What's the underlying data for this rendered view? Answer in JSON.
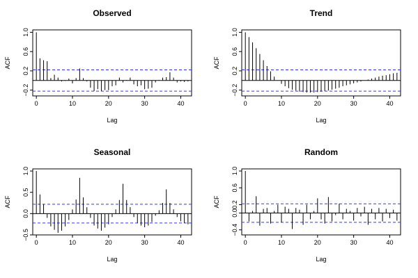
{
  "colors": {
    "ci": "#3333ff",
    "spike": "#000000",
    "frame": "#000000"
  },
  "chart_data": [
    {
      "type": "bar",
      "title": "Observed",
      "xlabel": "Lag",
      "ylabel": "ACF",
      "xlim": [
        -1,
        43
      ],
      "ylim": [
        -0.32,
        1.05
      ],
      "xticks": [
        0,
        10,
        20,
        30,
        40
      ],
      "yticks": [
        -0.2,
        0.2,
        0.6,
        1.0
      ],
      "ytick_labels": [
        "−0.2",
        "0.2",
        "0.6",
        "1.0"
      ],
      "ci": 0.22,
      "lags": [
        0,
        1,
        2,
        3,
        4,
        5,
        6,
        7,
        8,
        9,
        10,
        11,
        12,
        13,
        14,
        15,
        16,
        17,
        18,
        19,
        20,
        21,
        22,
        23,
        24,
        25,
        26,
        27,
        28,
        29,
        30,
        31,
        32,
        33,
        34,
        35,
        36,
        37,
        38,
        39,
        40,
        41,
        42
      ],
      "values": [
        1.0,
        0.46,
        0.42,
        0.4,
        0.05,
        0.12,
        0.06,
        -0.02,
        -0.01,
        0.04,
        -0.06,
        0.05,
        0.25,
        0.05,
        -0.02,
        -0.15,
        -0.22,
        -0.18,
        -0.22,
        -0.2,
        -0.2,
        -0.12,
        -0.1,
        0.06,
        -0.04,
        0.01,
        0.06,
        -0.08,
        -0.12,
        -0.1,
        -0.18,
        -0.17,
        -0.15,
        -0.04,
        0.01,
        0.06,
        0.07,
        0.17,
        0.06,
        -0.04,
        -0.02,
        -0.03,
        -0.02
      ]
    },
    {
      "type": "bar",
      "title": "Trend",
      "xlabel": "Lag",
      "ylabel": "ACF",
      "xlim": [
        -1,
        43
      ],
      "ylim": [
        -0.32,
        1.05
      ],
      "xticks": [
        0,
        10,
        20,
        30,
        40
      ],
      "yticks": [
        -0.2,
        0.2,
        0.6,
        1.0
      ],
      "ytick_labels": [
        "−0.2",
        "0.2",
        "0.6",
        "1.0"
      ],
      "ci": 0.22,
      "lags": [
        0,
        1,
        2,
        3,
        4,
        5,
        6,
        7,
        8,
        9,
        10,
        11,
        12,
        13,
        14,
        15,
        16,
        17,
        18,
        19,
        20,
        21,
        22,
        23,
        24,
        25,
        26,
        27,
        28,
        29,
        30,
        31,
        32,
        33,
        34,
        35,
        36,
        37,
        38,
        39,
        40,
        41,
        42
      ],
      "values": [
        1.0,
        0.9,
        0.79,
        0.67,
        0.55,
        0.42,
        0.3,
        0.19,
        0.08,
        0.0,
        -0.07,
        -0.12,
        -0.16,
        -0.19,
        -0.21,
        -0.23,
        -0.24,
        -0.25,
        -0.25,
        -0.25,
        -0.24,
        -0.23,
        -0.22,
        -0.21,
        -0.19,
        -0.17,
        -0.15,
        -0.12,
        -0.1,
        -0.08,
        -0.06,
        -0.04,
        -0.02,
        0.0,
        0.02,
        0.04,
        0.06,
        0.08,
        0.1,
        0.11,
        0.13,
        0.15,
        0.16
      ]
    },
    {
      "type": "bar",
      "title": "Seasonal",
      "xlabel": "Lag",
      "ylabel": "ACF",
      "xlim": [
        -1,
        43
      ],
      "ylim": [
        -0.5,
        1.05
      ],
      "xticks": [
        0,
        10,
        20,
        30,
        40
      ],
      "yticks": [
        -0.5,
        0.0,
        0.5,
        1.0
      ],
      "ytick_labels": [
        "−0.5",
        "0.0",
        "0.5",
        "1.0"
      ],
      "ci": 0.22,
      "lags": [
        0,
        1,
        2,
        3,
        4,
        5,
        6,
        7,
        8,
        9,
        10,
        11,
        12,
        13,
        14,
        15,
        16,
        17,
        18,
        19,
        20,
        21,
        22,
        23,
        24,
        25,
        26,
        27,
        28,
        29,
        30,
        31,
        32,
        33,
        34,
        35,
        36,
        37,
        38,
        39,
        40,
        41,
        42
      ],
      "values": [
        1.0,
        0.45,
        0.22,
        -0.1,
        -0.3,
        -0.38,
        -0.45,
        -0.4,
        -0.3,
        -0.15,
        0.1,
        0.33,
        0.84,
        0.38,
        0.15,
        -0.1,
        -0.28,
        -0.35,
        -0.4,
        -0.33,
        -0.25,
        -0.08,
        0.1,
        0.32,
        0.7,
        0.32,
        0.15,
        -0.08,
        -0.22,
        -0.28,
        -0.32,
        -0.28,
        -0.2,
        -0.05,
        0.08,
        0.25,
        0.57,
        0.25,
        0.1,
        -0.08,
        -0.18,
        -0.22,
        -0.25
      ]
    },
    {
      "type": "bar",
      "title": "Random",
      "xlabel": "Lag",
      "ylabel": "ACF",
      "xlim": [
        -1,
        43
      ],
      "ylim": [
        -0.52,
        1.05
      ],
      "xticks": [
        0,
        10,
        20,
        30,
        40
      ],
      "yticks": [
        -0.4,
        0.0,
        0.2,
        0.6,
        1.0
      ],
      "ytick_labels": [
        "−0.4",
        "0.0",
        "0.2",
        "0.6",
        "1.0"
      ],
      "ci": 0.22,
      "lags": [
        0,
        1,
        2,
        3,
        4,
        5,
        6,
        7,
        8,
        9,
        10,
        11,
        12,
        13,
        14,
        15,
        16,
        17,
        18,
        19,
        20,
        21,
        22,
        23,
        24,
        25,
        26,
        27,
        28,
        29,
        30,
        31,
        32,
        33,
        34,
        35,
        36,
        37,
        38,
        39,
        40,
        41,
        42
      ],
      "values": [
        1.0,
        -0.2,
        0.05,
        0.4,
        -0.3,
        0.1,
        0.12,
        -0.25,
        0.05,
        0.2,
        -0.22,
        0.15,
        0.1,
        -0.38,
        0.12,
        0.08,
        -0.28,
        0.2,
        -0.15,
        0.05,
        0.35,
        -0.15,
        -0.25,
        0.38,
        -0.2,
        -0.05,
        0.22,
        -0.15,
        0.1,
        0.05,
        -0.18,
        0.12,
        -0.08,
        0.15,
        -0.28,
        0.1,
        -0.15,
        0.12,
        -0.2,
        0.1,
        -0.12,
        0.08,
        -0.18
      ]
    }
  ]
}
